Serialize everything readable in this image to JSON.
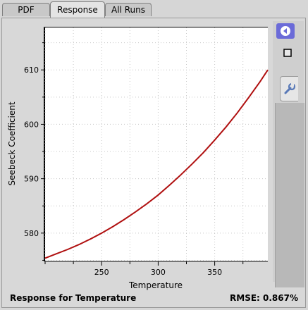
{
  "tabs": [
    {
      "label": "PDF"
    },
    {
      "label": "Response"
    },
    {
      "label": "All Runs"
    }
  ],
  "toolbar": {
    "collapse_icon": "collapse-left-icon",
    "stop_icon": "stop-square-icon",
    "settings_icon": "wrench-icon"
  },
  "footer": {
    "title": "Response for Temperature",
    "rmse": "RMSE: 0.867%"
  },
  "colors": {
    "curve": "#b01010",
    "accent": "#6b6bd8"
  },
  "chart_data": {
    "type": "line",
    "title": "",
    "xlabel": "Temperature",
    "ylabel": "Seebeck Coefficient",
    "xlim": [
      200,
      397
    ],
    "ylim": [
      574.8,
      617.8
    ],
    "xticks": [
      250,
      300,
      350
    ],
    "yticks": [
      580,
      590,
      600,
      610
    ],
    "grid": true,
    "series": [
      {
        "x": [
          200,
          210,
          220,
          230,
          240,
          250,
          260,
          270,
          280,
          290,
          300,
          310,
          320,
          330,
          340,
          350,
          360,
          370,
          380,
          390,
          397
        ],
        "values": [
          575.4,
          576.2,
          577.0,
          577.9,
          578.9,
          580.0,
          581.2,
          582.5,
          583.9,
          585.4,
          587.0,
          588.8,
          590.7,
          592.7,
          594.8,
          597.1,
          599.5,
          602.1,
          604.9,
          607.8,
          610.0
        ]
      }
    ]
  }
}
